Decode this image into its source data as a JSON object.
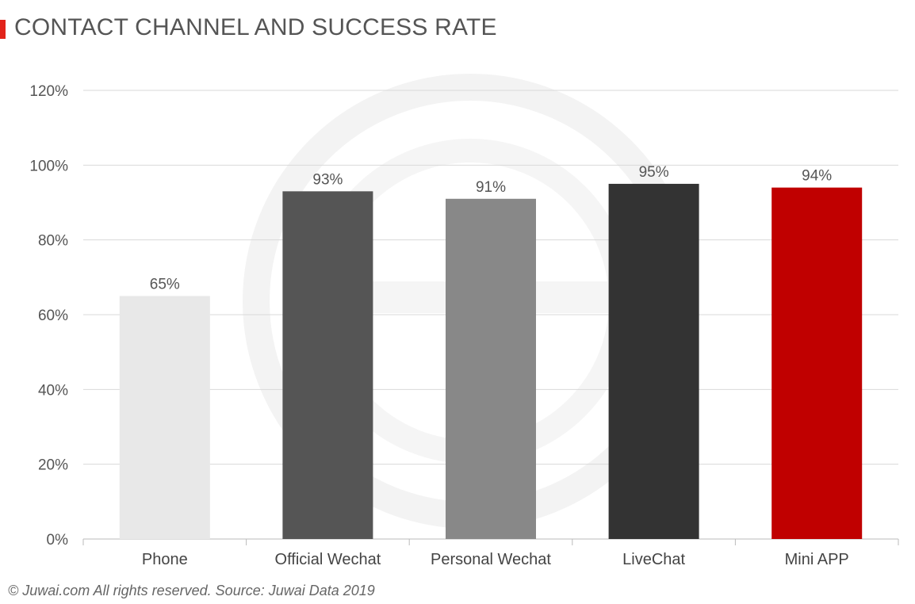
{
  "header": {
    "title": "CONTACT CHANNEL AND SUCCESS RATE",
    "accent_color": "#e2231a"
  },
  "footer": {
    "text": "© Juwai.com All rights reserved. Source: Juwai Data 2019"
  },
  "chart_data": {
    "type": "bar",
    "title": "CONTACT CHANNEL AND SUCCESS RATE",
    "xlabel": "",
    "ylabel": "",
    "categories": [
      "Phone",
      "Official Wechat",
      "Personal Wechat",
      "LiveChat",
      "Mini APP"
    ],
    "values": [
      65,
      93,
      91,
      95,
      94
    ],
    "data_labels": [
      "65%",
      "93%",
      "91%",
      "95%",
      "94%"
    ],
    "bar_colors": [
      "#e8e8e8",
      "#555555",
      "#888888",
      "#333333",
      "#c00000"
    ],
    "ylim": [
      0,
      120
    ],
    "yticks": [
      0,
      20,
      40,
      60,
      80,
      100,
      120
    ],
    "ytick_labels": [
      "0%",
      "20%",
      "40%",
      "60%",
      "80%",
      "100%",
      "120%"
    ],
    "grid": true,
    "legend": "none"
  }
}
